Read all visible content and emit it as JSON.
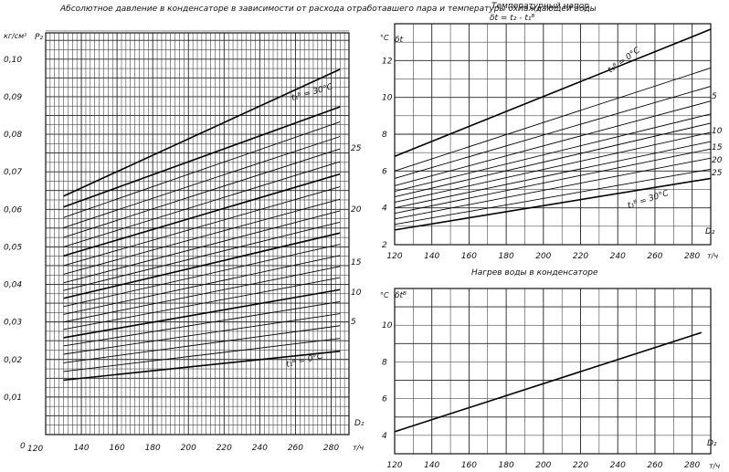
{
  "chart_data": [
    {
      "type": "line",
      "title": "Абсолютное давление в конденсаторе в зависимости от расхода отработавшего пара и температуры охлаждающей воды",
      "ylabel": "P₂",
      "yunit": "кг/см²",
      "xlabel": "D₂",
      "xunit": "т/ч",
      "x_ticks": [
        "140",
        "160",
        "180",
        "200",
        "220",
        "240",
        "260",
        "280"
      ],
      "x_origin_label": "120",
      "y_ticks": [
        "0,01",
        "0,02",
        "0,03",
        "0,04",
        "0,05",
        "0,06",
        "0,07",
        "0,08",
        "0,09",
        "0,10"
      ],
      "y_origin_label": "0",
      "xlim": [
        120,
        290
      ],
      "ylim": [
        0,
        0.107
      ],
      "grid": true,
      "curve_labels": [
        "5",
        "10",
        "15",
        "20",
        "25"
      ],
      "annotations": [
        "t₁ᴮ = 30°C",
        "t₁ᴮ = 0°C"
      ],
      "series": [
        {
          "x": [
            130,
            285
          ],
          "values": [
            0.0145,
            0.0222
          ]
        },
        {
          "x": [
            130,
            285
          ],
          "values": [
            0.0168,
            0.0256
          ]
        },
        {
          "x": [
            130,
            285
          ],
          "values": [
            0.0191,
            0.029
          ]
        },
        {
          "x": [
            130,
            285
          ],
          "values": [
            0.0214,
            0.0322
          ]
        },
        {
          "x": [
            130,
            285
          ],
          "values": [
            0.0236,
            0.0354
          ]
        },
        {
          "x": [
            130,
            285
          ],
          "values": [
            0.0258,
            0.0386
          ]
        },
        {
          "x": [
            130,
            285
          ],
          "values": [
            0.028,
            0.0418
          ]
        },
        {
          "x": [
            130,
            285
          ],
          "values": [
            0.03,
            0.0448
          ]
        },
        {
          "x": [
            130,
            285
          ],
          "values": [
            0.032,
            0.0477
          ]
        },
        {
          "x": [
            130,
            285
          ],
          "values": [
            0.0341,
            0.0507
          ]
        },
        {
          "x": [
            130,
            285
          ],
          "values": [
            0.0363,
            0.0537
          ]
        },
        {
          "x": [
            130,
            285
          ],
          "values": [
            0.0384,
            0.0566
          ]
        },
        {
          "x": [
            130,
            285
          ],
          "values": [
            0.0404,
            0.0596
          ]
        },
        {
          "x": [
            130,
            285
          ],
          "values": [
            0.0427,
            0.0627
          ]
        },
        {
          "x": [
            130,
            285
          ],
          "values": [
            0.045,
            0.066
          ]
        },
        {
          "x": [
            130,
            285
          ],
          "values": [
            0.0476,
            0.0694
          ]
        },
        {
          "x": [
            130,
            285
          ],
          "values": [
            0.05,
            0.0727
          ]
        },
        {
          "x": [
            130,
            285
          ],
          "values": [
            0.0525,
            0.0761
          ]
        },
        {
          "x": [
            130,
            285
          ],
          "values": [
            0.0551,
            0.0794
          ]
        },
        {
          "x": [
            130,
            285
          ],
          "values": [
            0.0578,
            0.0833
          ]
        },
        {
          "x": [
            130,
            285
          ],
          "values": [
            0.0606,
            0.0873
          ]
        },
        {
          "x": [
            130,
            285
          ],
          "values": [
            0.0635,
            0.0973
          ]
        }
      ]
    },
    {
      "type": "line",
      "title": "Температурный напор",
      "subtitle": "δt = t₂ - t₁ᴮ",
      "ylabel": "δt",
      "yunit": "°C",
      "xlabel": "D₂",
      "xunit": "т/ч",
      "x_ticks": [
        "120",
        "140",
        "160",
        "180",
        "200",
        "220",
        "240",
        "260",
        "280"
      ],
      "y_ticks": [
        "2",
        "4",
        "6",
        "8",
        "10",
        "12"
      ],
      "xlim": [
        120,
        290
      ],
      "ylim": [
        2,
        14
      ],
      "grid": true,
      "curve_labels": [
        "5",
        "10",
        "15",
        "20",
        "25"
      ],
      "annotations": [
        "t₁ᴮ = 0°C",
        "t₁ᴮ = 30°C"
      ],
      "series": [
        {
          "x": [
            120,
            290
          ],
          "values": [
            2.8,
            5.6
          ]
        },
        {
          "x": [
            120,
            290
          ],
          "values": [
            3.1,
            6.1
          ]
        },
        {
          "x": [
            120,
            290
          ],
          "values": [
            3.4,
            6.7
          ]
        },
        {
          "x": [
            120,
            290
          ],
          "values": [
            3.7,
            7.2
          ]
        },
        {
          "x": [
            120,
            290
          ],
          "values": [
            4.0,
            7.6
          ]
        },
        {
          "x": [
            120,
            290
          ],
          "values": [
            4.3,
            8.1
          ]
        },
        {
          "x": [
            120,
            290
          ],
          "values": [
            4.6,
            8.6
          ]
        },
        {
          "x": [
            120,
            290
          ],
          "values": [
            4.9,
            9.1
          ]
        },
        {
          "x": [
            120,
            290
          ],
          "values": [
            5.2,
            9.8
          ]
        },
        {
          "x": [
            120,
            290
          ],
          "values": [
            5.6,
            10.6
          ]
        },
        {
          "x": [
            120,
            290
          ],
          "values": [
            6.0,
            11.6
          ]
        },
        {
          "x": [
            120,
            290
          ],
          "values": [
            6.8,
            13.7
          ]
        }
      ]
    },
    {
      "type": "line",
      "title": "Нагрев воды в конденсаторе",
      "ylabel": "δtᴮ",
      "yunit": "°C",
      "xlabel": "D₂",
      "xunit": "т/ч",
      "x_ticks": [
        "120",
        "140",
        "160",
        "180",
        "200",
        "220",
        "240",
        "260",
        "280"
      ],
      "y_ticks": [
        "4",
        "6",
        "8",
        "10"
      ],
      "xlim": [
        120,
        290
      ],
      "ylim": [
        3,
        12
      ],
      "grid": true,
      "series": [
        {
          "x": [
            120,
            285
          ],
          "values": [
            4.2,
            9.6
          ]
        }
      ]
    }
  ]
}
